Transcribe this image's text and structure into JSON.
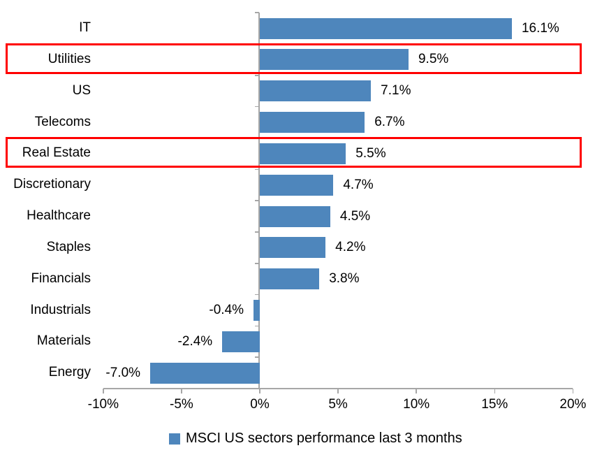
{
  "chart_data": {
    "type": "bar",
    "orientation": "horizontal",
    "title": "",
    "categories": [
      "IT",
      "Utilities",
      "US",
      "Telecoms",
      "Real Estate",
      "Discretionary",
      "Healthcare",
      "Staples",
      "Financials",
      "Industrials",
      "Materials",
      "Energy"
    ],
    "values": [
      16.1,
      9.5,
      7.1,
      6.7,
      5.5,
      4.7,
      4.5,
      4.2,
      3.8,
      -0.4,
      -2.4,
      -7.0
    ],
    "value_labels": [
      "16.1%",
      "9.5%",
      "7.1%",
      "6.7%",
      "5.5%",
      "4.7%",
      "4.5%",
      "4.2%",
      "3.8%",
      "-0.4%",
      "-2.4%",
      "-7.0%"
    ],
    "highlighted_categories": [
      "Utilities",
      "Real Estate"
    ],
    "x_axis": {
      "min": -10,
      "max": 20,
      "tick_values": [
        -10,
        -5,
        0,
        5,
        10,
        15,
        20
      ],
      "tick_labels": [
        "-10%",
        "-5%",
        "0%",
        "5%",
        "10%",
        "15%",
        "20%"
      ]
    },
    "grid": false,
    "legend_position": "bottom",
    "legend": {
      "label": "MSCI US sectors performance last 3 months",
      "marker_color": "#4E86BC"
    },
    "colors": {
      "bar": "#4E86BC",
      "highlight_border": "#FF0000",
      "axis": "#A6A6A6",
      "text": "#000000"
    }
  }
}
